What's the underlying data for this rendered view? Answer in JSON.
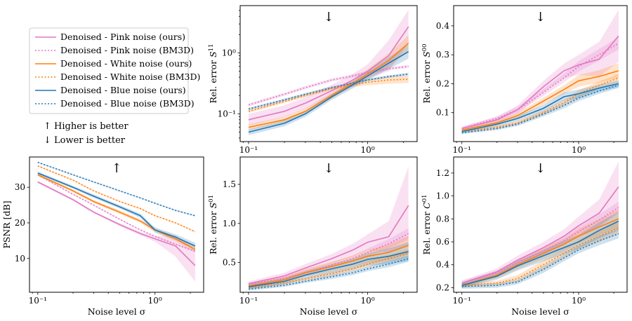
{
  "colors": {
    "pink": "#e377c2",
    "orange": "#ff7f0e",
    "blue": "#1f77b4",
    "up": "#ff2020",
    "down": "#2ca02c"
  },
  "legend": {
    "entries": [
      {
        "label": "Denoised - Pink noise (ours)",
        "color": "#e377c2",
        "style": "solid"
      },
      {
        "label": "Denoised - Pink noise (BM3D)",
        "color": "#e377c2",
        "style": "dotted"
      },
      {
        "label": "Denoised - White noise (ours)",
        "color": "#ff7f0e",
        "style": "solid"
      },
      {
        "label": "Denoised - White noise (BM3D)",
        "color": "#ff7f0e",
        "style": "dotted"
      },
      {
        "label": "Denoised - Blue noise (ours)",
        "color": "#1f77b4",
        "style": "solid"
      },
      {
        "label": "Denoised - Blue noise (BM3D)",
        "color": "#1f77b4",
        "style": "dotted"
      }
    ],
    "higher_better": "↑ Higher is better",
    "lower_better": "↓ Lower is better"
  },
  "chart_data": [
    {
      "id": "s11",
      "type": "line",
      "yscale": "log",
      "ylabel": "Rel. error S11",
      "xlabel": "",
      "arrow": "↓",
      "arrow_color": "#2ca02c",
      "xlim": [
        0.085,
        2.6
      ],
      "ylim": [
        0.035,
        6.0
      ],
      "xticks": [
        {
          "v": 0.1,
          "t": "10⁻¹"
        },
        {
          "v": 1,
          "t": "10⁰"
        }
      ],
      "yticks": [
        {
          "v": 0.1,
          "t": "10⁻¹"
        },
        {
          "v": 1,
          "t": "10⁰"
        }
      ],
      "x": [
        0.1,
        0.2,
        0.3,
        0.5,
        0.75,
        1.0,
        1.5,
        2.2
      ],
      "series": [
        {
          "name": "Pink (ours)",
          "color": "#e377c2",
          "dash": "solid",
          "values": [
            0.08,
            0.11,
            0.15,
            0.24,
            0.36,
            0.5,
            0.9,
            2.7
          ],
          "band": [
            0.25,
            0.25,
            0.25,
            0.25,
            0.25,
            0.3,
            0.8,
            0.9
          ]
        },
        {
          "name": "Pink (BM3D)",
          "color": "#e377c2",
          "dash": "dotted",
          "values": [
            0.14,
            0.21,
            0.27,
            0.36,
            0.42,
            0.48,
            0.55,
            0.6
          ],
          "band": [
            0.06,
            0.06,
            0.06,
            0.06,
            0.06,
            0.06,
            0.06,
            0.06
          ]
        },
        {
          "name": "White (ours)",
          "color": "#ff7f0e",
          "dash": "solid",
          "values": [
            0.06,
            0.08,
            0.11,
            0.2,
            0.32,
            0.45,
            0.75,
            1.45
          ],
          "band": [
            0.12,
            0.12,
            0.12,
            0.12,
            0.15,
            0.2,
            0.3,
            0.35
          ]
        },
        {
          "name": "White (BM3D)",
          "color": "#ff7f0e",
          "dash": "dotted",
          "values": [
            0.11,
            0.16,
            0.2,
            0.26,
            0.3,
            0.33,
            0.36,
            0.37
          ],
          "band": [
            0.06,
            0.06,
            0.06,
            0.06,
            0.08,
            0.12,
            0.15,
            0.15
          ]
        },
        {
          "name": "Blue (ours)",
          "color": "#1f77b4",
          "dash": "solid",
          "values": [
            0.05,
            0.07,
            0.1,
            0.19,
            0.3,
            0.42,
            0.68,
            1.05
          ],
          "band": [
            0.12,
            0.12,
            0.12,
            0.12,
            0.15,
            0.18,
            0.25,
            0.3
          ]
        },
        {
          "name": "Blue (BM3D)",
          "color": "#1f77b4",
          "dash": "dotted",
          "values": [
            0.12,
            0.17,
            0.21,
            0.27,
            0.32,
            0.36,
            0.41,
            0.45
          ],
          "band": [
            0.05,
            0.05,
            0.05,
            0.05,
            0.05,
            0.05,
            0.05,
            0.05
          ]
        }
      ]
    },
    {
      "id": "s00",
      "type": "line",
      "yscale": "linear",
      "ylabel": "Rel. error S00",
      "xlabel": "",
      "arrow": "↓",
      "arrow_color": "#2ca02c",
      "xlim": [
        0.085,
        2.6
      ],
      "ylim": [
        0.0,
        0.47
      ],
      "xticks": [
        {
          "v": 0.1,
          "t": "10⁻¹"
        },
        {
          "v": 1,
          "t": "10⁰"
        }
      ],
      "yticks": [
        {
          "v": 0.1,
          "t": "0.1"
        },
        {
          "v": 0.2,
          "t": "0.2"
        },
        {
          "v": 0.3,
          "t": "0.3"
        },
        {
          "v": 0.4,
          "t": "0.4"
        }
      ],
      "x": [
        0.1,
        0.2,
        0.3,
        0.5,
        0.75,
        1.0,
        1.5,
        2.2
      ],
      "series": [
        {
          "name": "Pink (ours)",
          "color": "#e377c2",
          "dash": "solid",
          "values": [
            0.045,
            0.075,
            0.11,
            0.19,
            0.245,
            0.265,
            0.285,
            0.365
          ],
          "band": [
            0.008,
            0.01,
            0.015,
            0.02,
            0.025,
            0.035,
            0.06,
            0.09
          ]
        },
        {
          "name": "Pink (BM3D)",
          "color": "#e377c2",
          "dash": "dotted",
          "values": [
            0.045,
            0.08,
            0.11,
            0.17,
            0.22,
            0.26,
            0.3,
            0.34
          ],
          "band": [
            0.005,
            0.008,
            0.01,
            0.012,
            0.015,
            0.018,
            0.02,
            0.022
          ]
        },
        {
          "name": "White (ours)",
          "color": "#ff7f0e",
          "dash": "solid",
          "values": [
            0.04,
            0.065,
            0.09,
            0.14,
            0.18,
            0.21,
            0.225,
            0.245
          ],
          "band": [
            0.006,
            0.008,
            0.01,
            0.012,
            0.015,
            0.02,
            0.022,
            0.025
          ]
        },
        {
          "name": "White (BM3D)",
          "color": "#ff7f0e",
          "dash": "dotted",
          "values": [
            0.035,
            0.05,
            0.065,
            0.1,
            0.135,
            0.165,
            0.195,
            0.22
          ],
          "band": [
            0.004,
            0.005,
            0.006,
            0.008,
            0.01,
            0.012,
            0.013,
            0.014
          ]
        },
        {
          "name": "Blue (ours)",
          "color": "#1f77b4",
          "dash": "solid",
          "values": [
            0.035,
            0.06,
            0.08,
            0.115,
            0.155,
            0.165,
            0.185,
            0.2
          ],
          "band": [
            0.006,
            0.008,
            0.01,
            0.012,
            0.015,
            0.015,
            0.012,
            0.012
          ]
        },
        {
          "name": "Blue (BM3D)",
          "color": "#1f77b4",
          "dash": "dotted",
          "values": [
            0.03,
            0.045,
            0.06,
            0.095,
            0.125,
            0.15,
            0.175,
            0.195
          ],
          "band": [
            0.004,
            0.005,
            0.006,
            0.008,
            0.01,
            0.01,
            0.01,
            0.01
          ]
        }
      ]
    },
    {
      "id": "psnr",
      "type": "line",
      "yscale": "linear",
      "ylabel": "PSNR [dB]",
      "xlabel": "Noise level σ",
      "arrow": "↑",
      "arrow_color": "#ff2020",
      "xlim": [
        0.085,
        2.6
      ],
      "ylim": [
        0.5,
        38.5
      ],
      "xticks": [
        {
          "v": 0.1,
          "t": "10⁻¹"
        },
        {
          "v": 1,
          "t": "10⁰"
        }
      ],
      "yticks": [
        {
          "v": 10,
          "t": "10"
        },
        {
          "v": 20,
          "t": "20"
        },
        {
          "v": 30,
          "t": "30"
        }
      ],
      "x": [
        0.1,
        0.2,
        0.3,
        0.5,
        0.75,
        1.0,
        1.5,
        2.2
      ],
      "series": [
        {
          "name": "Pink (ours)",
          "color": "#e377c2",
          "dash": "solid",
          "values": [
            31.5,
            26.5,
            23.0,
            19.5,
            17.0,
            15.5,
            13.5,
            8.0
          ],
          "band": [
            0.3,
            0.3,
            0.3,
            0.4,
            0.5,
            0.8,
            3.0,
            4.5
          ]
        },
        {
          "name": "Pink (BM3D)",
          "color": "#e377c2",
          "dash": "dotted",
          "values": [
            33.5,
            28.0,
            25.0,
            21.0,
            18.0,
            16.2,
            14.0,
            12.0
          ],
          "band": [
            0.2,
            0.2,
            0.2,
            0.2,
            0.2,
            0.2,
            0.2,
            0.2
          ]
        },
        {
          "name": "White (ours)",
          "color": "#ff7f0e",
          "dash": "solid",
          "values": [
            33.5,
            29.0,
            26.0,
            23.0,
            20.5,
            18.0,
            15.5,
            12.5
          ],
          "band": [
            0.4,
            0.4,
            0.4,
            0.5,
            0.5,
            0.6,
            0.7,
            0.8
          ]
        },
        {
          "name": "White (BM3D)",
          "color": "#ff7f0e",
          "dash": "dotted",
          "values": [
            36.0,
            32.0,
            29.0,
            26.0,
            24.0,
            22.0,
            20.0,
            17.5
          ],
          "band": [
            0.2,
            0.2,
            0.2,
            0.2,
            0.2,
            0.2,
            0.2,
            0.2
          ]
        },
        {
          "name": "Blue (ours)",
          "color": "#1f77b4",
          "dash": "solid",
          "values": [
            34.0,
            30.0,
            27.5,
            24.5,
            22.0,
            18.0,
            16.0,
            13.5
          ],
          "band": [
            0.4,
            0.4,
            0.5,
            0.5,
            0.6,
            0.7,
            0.8,
            0.9
          ]
        },
        {
          "name": "Blue (BM3D)",
          "color": "#1f77b4",
          "dash": "dotted",
          "values": [
            37.0,
            33.5,
            31.5,
            29.0,
            27.0,
            25.5,
            23.5,
            22.0
          ],
          "band": [
            0.2,
            0.2,
            0.2,
            0.2,
            0.2,
            0.2,
            0.2,
            0.2
          ]
        }
      ]
    },
    {
      "id": "s01",
      "type": "line",
      "yscale": "linear",
      "ylabel": "Rel. error S01",
      "xlabel": "Noise level σ",
      "arrow": "↓",
      "arrow_color": "#2ca02c",
      "xlim": [
        0.085,
        2.6
      ],
      "ylim": [
        0.12,
        1.85
      ],
      "xticks": [
        {
          "v": 0.1,
          "t": "10⁻¹"
        },
        {
          "v": 1,
          "t": "10⁰"
        }
      ],
      "yticks": [
        {
          "v": 0.5,
          "t": "0.5"
        },
        {
          "v": 1.0,
          "t": "1.0"
        },
        {
          "v": 1.5,
          "t": "1.5"
        }
      ],
      "x": [
        0.1,
        0.2,
        0.3,
        0.5,
        0.75,
        1.0,
        1.5,
        2.2
      ],
      "series": [
        {
          "name": "Pink (ours)",
          "color": "#e377c2",
          "dash": "solid",
          "values": [
            0.23,
            0.33,
            0.43,
            0.55,
            0.66,
            0.76,
            0.83,
            1.23
          ],
          "band": [
            0.03,
            0.04,
            0.05,
            0.06,
            0.08,
            0.1,
            0.2,
            0.5
          ]
        },
        {
          "name": "Pink (BM3D)",
          "color": "#e377c2",
          "dash": "dotted",
          "values": [
            0.22,
            0.3,
            0.37,
            0.47,
            0.55,
            0.63,
            0.74,
            0.87
          ],
          "band": [
            0.02,
            0.02,
            0.03,
            0.03,
            0.04,
            0.05,
            0.06,
            0.07
          ]
        },
        {
          "name": "White (ours)",
          "color": "#ff7f0e",
          "dash": "solid",
          "values": [
            0.2,
            0.28,
            0.37,
            0.45,
            0.52,
            0.58,
            0.63,
            0.72
          ],
          "band": [
            0.03,
            0.04,
            0.05,
            0.06,
            0.07,
            0.08,
            0.1,
            0.12
          ]
        },
        {
          "name": "White (BM3D)",
          "color": "#ff7f0e",
          "dash": "dotted",
          "values": [
            0.18,
            0.24,
            0.29,
            0.36,
            0.42,
            0.48,
            0.55,
            0.62
          ],
          "band": [
            0.02,
            0.02,
            0.02,
            0.03,
            0.03,
            0.04,
            0.04,
            0.05
          ]
        },
        {
          "name": "Blue (ours)",
          "color": "#1f77b4",
          "dash": "solid",
          "values": [
            0.19,
            0.26,
            0.34,
            0.42,
            0.48,
            0.54,
            0.58,
            0.64
          ],
          "band": [
            0.03,
            0.04,
            0.05,
            0.06,
            0.07,
            0.08,
            0.1,
            0.12
          ]
        },
        {
          "name": "Blue (BM3D)",
          "color": "#1f77b4",
          "dash": "dotted",
          "values": [
            0.16,
            0.21,
            0.26,
            0.32,
            0.37,
            0.42,
            0.48,
            0.55
          ],
          "band": [
            0.02,
            0.02,
            0.02,
            0.03,
            0.03,
            0.03,
            0.04,
            0.04
          ]
        }
      ]
    },
    {
      "id": "c01",
      "type": "line",
      "yscale": "linear",
      "ylabel": "Rel. error C01",
      "xlabel": "Noise level σ",
      "arrow": "↓",
      "arrow_color": "#2ca02c",
      "xlim": [
        0.085,
        2.6
      ],
      "ylim": [
        0.16,
        1.34
      ],
      "xticks": [
        {
          "v": 0.1,
          "t": "10⁻¹"
        },
        {
          "v": 1,
          "t": "10⁰"
        }
      ],
      "yticks": [
        {
          "v": 0.2,
          "t": "0.2"
        },
        {
          "v": 0.4,
          "t": "0.4"
        },
        {
          "v": 0.6,
          "t": "0.6"
        },
        {
          "v": 0.8,
          "t": "0.8"
        },
        {
          "v": 1.0,
          "t": "1.0"
        },
        {
          "v": 1.2,
          "t": "1.2"
        }
      ],
      "x": [
        0.1,
        0.2,
        0.3,
        0.5,
        0.75,
        1.0,
        1.5,
        2.2
      ],
      "series": [
        {
          "name": "Pink (ours)",
          "color": "#e377c2",
          "dash": "solid",
          "values": [
            0.24,
            0.34,
            0.44,
            0.55,
            0.65,
            0.74,
            0.85,
            1.08
          ],
          "band": [
            0.02,
            0.03,
            0.04,
            0.05,
            0.06,
            0.08,
            0.12,
            0.22
          ]
        },
        {
          "name": "Pink (BM3D)",
          "color": "#e377c2",
          "dash": "dotted",
          "values": [
            0.24,
            0.33,
            0.42,
            0.52,
            0.61,
            0.69,
            0.79,
            0.9
          ],
          "band": [
            0.02,
            0.02,
            0.03,
            0.03,
            0.04,
            0.04,
            0.05,
            0.05
          ]
        },
        {
          "name": "White (ours)",
          "color": "#ff7f0e",
          "dash": "solid",
          "values": [
            0.22,
            0.31,
            0.4,
            0.5,
            0.58,
            0.65,
            0.73,
            0.8
          ],
          "band": [
            0.02,
            0.03,
            0.04,
            0.05,
            0.05,
            0.06,
            0.07,
            0.08
          ]
        },
        {
          "name": "White (BM3D)",
          "color": "#ff7f0e",
          "dash": "dotted",
          "values": [
            0.22,
            0.24,
            0.28,
            0.4,
            0.5,
            0.57,
            0.65,
            0.72
          ],
          "band": [
            0.02,
            0.02,
            0.03,
            0.04,
            0.04,
            0.04,
            0.05,
            0.05
          ]
        },
        {
          "name": "Blue (ours)",
          "color": "#1f77b4",
          "dash": "solid",
          "values": [
            0.22,
            0.3,
            0.39,
            0.48,
            0.55,
            0.6,
            0.7,
            0.78
          ],
          "band": [
            0.02,
            0.03,
            0.04,
            0.05,
            0.06,
            0.06,
            0.07,
            0.08
          ]
        },
        {
          "name": "Blue (BM3D)",
          "color": "#1f77b4",
          "dash": "dotted",
          "values": [
            0.21,
            0.22,
            0.25,
            0.36,
            0.46,
            0.53,
            0.61,
            0.67
          ],
          "band": [
            0.02,
            0.02,
            0.02,
            0.03,
            0.03,
            0.03,
            0.04,
            0.04
          ]
        }
      ]
    }
  ]
}
